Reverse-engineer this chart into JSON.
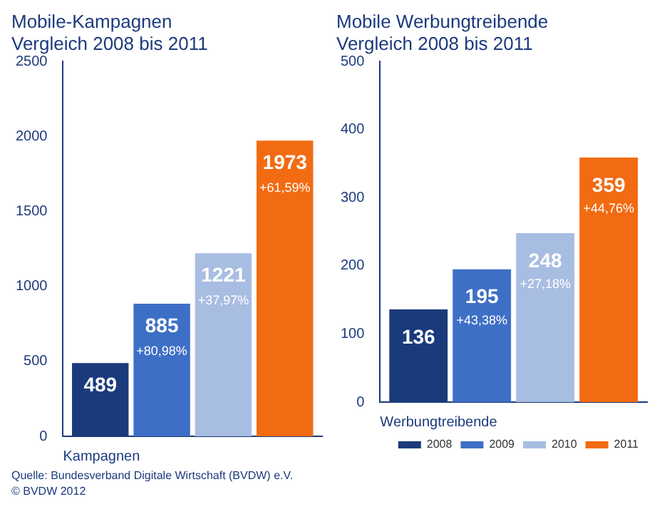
{
  "chart_data": [
    {
      "type": "bar",
      "title": "Mobile-Kampagnen\nVergleich 2008 bis 2011",
      "xlabel": "Kampagnen",
      "categories": [
        null
      ],
      "series": [
        {
          "color": "#1b3a7c",
          "values": [
            489
          ],
          "value_labels": [
            "489"
          ]
        },
        {
          "color": "#3e6fc6",
          "values": [
            885
          ],
          "value_labels": [
            "885\n+80,98%"
          ]
        },
        {
          "color": "#a8bde2",
          "values": [
            1221
          ],
          "value_labels": [
            "1221\n+37,97%"
          ]
        },
        {
          "color": "#f26b12",
          "values": [
            1973
          ],
          "value_labels": [
            "1973\n+61,59%"
          ]
        }
      ],
      "ylim": [
        0,
        2500
      ],
      "yticks": [
        0,
        500,
        1000,
        1500,
        2000,
        2500
      ],
      "legend": false
    },
    {
      "type": "bar",
      "title": "Mobile Werbungtreibende\nVergleich 2008 bis 2011",
      "xlabel": "Werbungtreibende",
      "categories": [
        null
      ],
      "series": [
        {
          "name": "2008",
          "color": "#1b3a7c",
          "values": [
            136
          ],
          "value_labels": [
            "136"
          ]
        },
        {
          "name": "2009",
          "color": "#3e6fc6",
          "values": [
            195
          ],
          "value_labels": [
            "195\n+43,38%"
          ]
        },
        {
          "name": "2010",
          "color": "#a8bde2",
          "values": [
            248
          ],
          "value_labels": [
            "248\n+27,18%"
          ]
        },
        {
          "name": "2011",
          "color": "#f26b12",
          "values": [
            359
          ],
          "value_labels": [
            "359\n+44,76%"
          ]
        }
      ],
      "ylim": [
        0,
        500
      ],
      "yticks": [
        0,
        100,
        200,
        300,
        400,
        500
      ],
      "legend": "bottom right",
      "annotations": [
        "Quelle: Bundesverband Digitale Wirtschaft (BVDW) e.V.",
        "© BVDW 2012"
      ]
    }
  ]
}
